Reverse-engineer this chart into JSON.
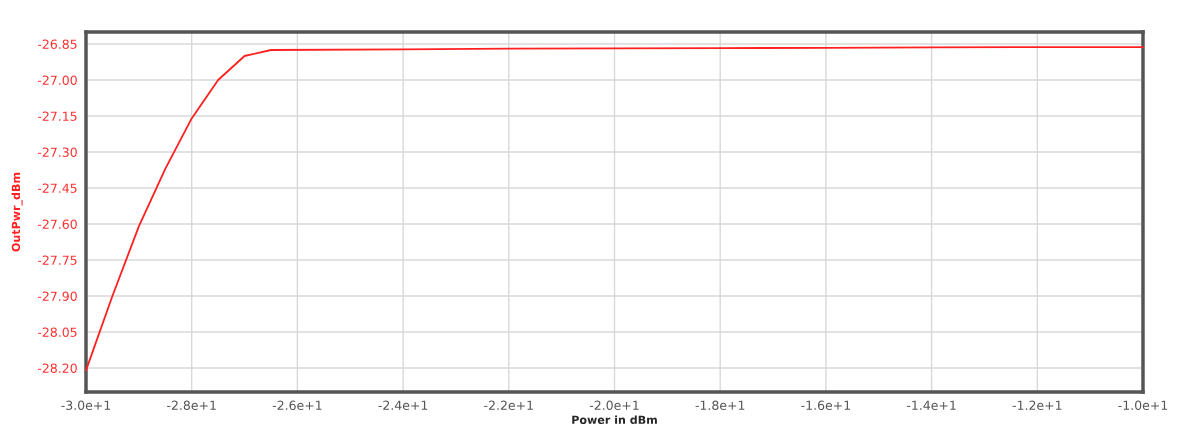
{
  "chart_data": {
    "type": "line",
    "xlabel": "Power in dBm",
    "ylabel": "OutPwr_dBm",
    "x": [
      -30,
      -29.5,
      -29,
      -28.5,
      -28,
      -27.5,
      -27,
      -26.5,
      -24,
      -22,
      -20,
      -18,
      -16,
      -14,
      -12,
      -10
    ],
    "series": [
      {
        "color": "#ff2020",
        "values": [
          -28.21,
          -27.9,
          -27.61,
          -27.37,
          -27.16,
          -27.0,
          -26.9,
          -26.875,
          -26.872,
          -26.869,
          -26.868,
          -26.867,
          -26.866,
          -26.864,
          -26.863,
          -26.863
        ]
      }
    ],
    "xlim": [
      -30,
      -10
    ],
    "ylim": [
      -28.3,
      -26.8
    ],
    "xticks": [
      {
        "value": -30,
        "label": "-3.0e+1"
      },
      {
        "value": -28,
        "label": "-2.8e+1"
      },
      {
        "value": -26,
        "label": "-2.6e+1"
      },
      {
        "value": -24,
        "label": "-2.4e+1"
      },
      {
        "value": -22,
        "label": "-2.2e+1"
      },
      {
        "value": -20,
        "label": "-2.0e+1"
      },
      {
        "value": -18,
        "label": "-1.8e+1"
      },
      {
        "value": -16,
        "label": "-1.6e+1"
      },
      {
        "value": -14,
        "label": "-1.4e+1"
      },
      {
        "value": -12,
        "label": "-1.2e+1"
      },
      {
        "value": -10,
        "label": "-1.0e+1"
      }
    ],
    "yticks": [
      {
        "value": -26.85,
        "label": "-26.85"
      },
      {
        "value": -27.0,
        "label": "-27.00"
      },
      {
        "value": -27.15,
        "label": "-27.15"
      },
      {
        "value": -27.3,
        "label": "-27.30"
      },
      {
        "value": -27.45,
        "label": "-27.45"
      },
      {
        "value": -27.6,
        "label": "-27.60"
      },
      {
        "value": -27.75,
        "label": "-27.75"
      },
      {
        "value": -27.9,
        "label": "-27.90"
      },
      {
        "value": -28.05,
        "label": "-28.05"
      },
      {
        "value": -28.2,
        "label": "-28.20"
      }
    ],
    "grid": true,
    "marker": "none",
    "line_style": "solid"
  }
}
